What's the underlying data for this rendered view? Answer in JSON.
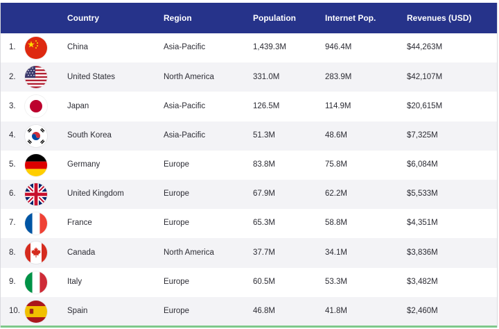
{
  "header": {
    "country": "Country",
    "region": "Region",
    "population": "Population",
    "internet_pop": "Internet Pop.",
    "revenues": "Revenues (USD)"
  },
  "colors": {
    "header_bg": "#26338a",
    "row_alt": "#f3f3f6",
    "bottom_accent": "#7ec98a"
  },
  "rows": [
    {
      "rank": "1.",
      "flag": "china-flag-icon",
      "country": "China",
      "region": "Asia-Pacific",
      "population": "1,439.3M",
      "internet_pop": "946.4M",
      "revenues": "$44,263M"
    },
    {
      "rank": "2.",
      "flag": "usa-flag-icon",
      "country": "United States",
      "region": "North America",
      "population": "331.0M",
      "internet_pop": "283.9M",
      "revenues": "$42,107M"
    },
    {
      "rank": "3.",
      "flag": "japan-flag-icon",
      "country": "Japan",
      "region": "Asia-Pacific",
      "population": "126.5M",
      "internet_pop": "114.9M",
      "revenues": "$20,615M"
    },
    {
      "rank": "4.",
      "flag": "south-korea-flag-icon",
      "country": "South Korea",
      "region": "Asia-Pacific",
      "population": "51.3M",
      "internet_pop": "48.6M",
      "revenues": "$7,325M"
    },
    {
      "rank": "5.",
      "flag": "germany-flag-icon",
      "country": "Germany",
      "region": "Europe",
      "population": "83.8M",
      "internet_pop": "75.8M",
      "revenues": "$6,084M"
    },
    {
      "rank": "6.",
      "flag": "uk-flag-icon",
      "country": "United Kingdom",
      "region": "Europe",
      "population": "67.9M",
      "internet_pop": "62.2M",
      "revenues": "$5,533M"
    },
    {
      "rank": "7.",
      "flag": "france-flag-icon",
      "country": "France",
      "region": "Europe",
      "population": "65.3M",
      "internet_pop": "58.8M",
      "revenues": "$4,351M"
    },
    {
      "rank": "8.",
      "flag": "canada-flag-icon",
      "country": "Canada",
      "region": "North America",
      "population": "37.7M",
      "internet_pop": "34.1M",
      "revenues": "$3,836M"
    },
    {
      "rank": "9.",
      "flag": "italy-flag-icon",
      "country": "Italy",
      "region": "Europe",
      "population": "60.5M",
      "internet_pop": "53.3M",
      "revenues": "$3,482M"
    },
    {
      "rank": "10.",
      "flag": "spain-flag-icon",
      "country": "Spain",
      "region": "Europe",
      "population": "46.8M",
      "internet_pop": "41.8M",
      "revenues": "$2,460M"
    }
  ]
}
